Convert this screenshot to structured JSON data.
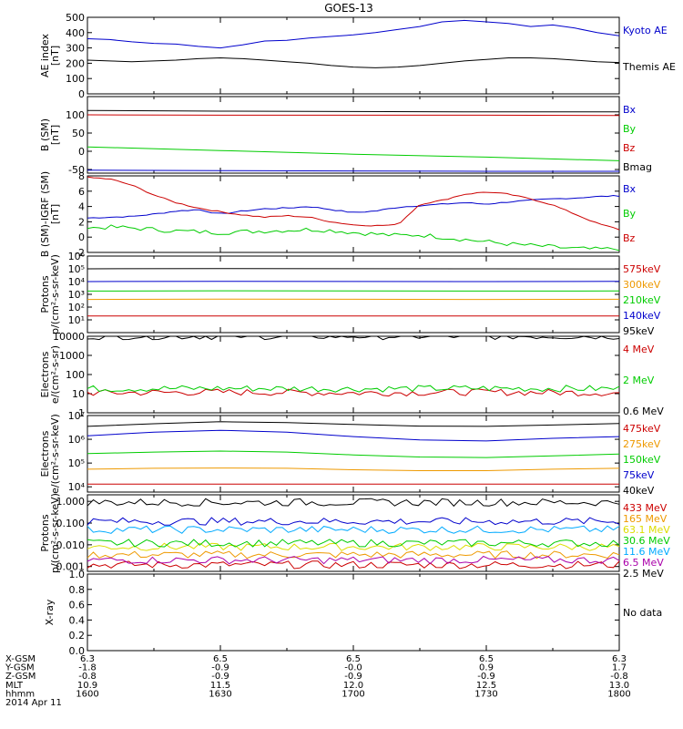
{
  "title": "GOES-13",
  "time_axis": {
    "x_ticks": [
      "1600",
      "1630",
      "1700",
      "1730",
      "1800"
    ],
    "ephemeris": [
      {
        "label": "X-GSM",
        "values": [
          "6.3",
          "6.5",
          "6.5",
          "6.5",
          "6.3"
        ]
      },
      {
        "label": "Y-GSM",
        "values": [
          "-1.8",
          "-0.9",
          "-0.0",
          "0.9",
          "1.7"
        ]
      },
      {
        "label": "Z-GSM",
        "values": [
          "-0.8",
          "-0.9",
          "-0.9",
          "-0.9",
          "-0.8"
        ]
      },
      {
        "label": "MLT",
        "values": [
          "10.9",
          "11.5",
          "12.0",
          "12.5",
          "13.0"
        ]
      },
      {
        "label": "hhmm",
        "values": [
          "1600",
          "1630",
          "1700",
          "1730",
          "1800"
        ]
      }
    ],
    "date": "2014 Apr 11"
  },
  "colors": {
    "black": "#000000",
    "blue": "#0000cc",
    "red": "#cc0000",
    "green": "#00cc00",
    "orange": "#ee9900",
    "yellow": "#dddd00",
    "cyan": "#00aaff",
    "purple": "#aa00aa"
  },
  "chart_data": [
    {
      "type": "line",
      "panel": "ae",
      "ylabel": [
        "AE index",
        "[nT]"
      ],
      "ylim": [
        0,
        500
      ],
      "yscale": "linear",
      "yticks": [
        "0",
        "100",
        "200",
        "300",
        "400",
        "500"
      ],
      "ytick_values": [
        0,
        100,
        200,
        300,
        400,
        500
      ],
      "x": [
        "1600",
        "1605",
        "1610",
        "1615",
        "1620",
        "1625",
        "1630",
        "1635",
        "1640",
        "1645",
        "1650",
        "1655",
        "1700",
        "1705",
        "1710",
        "1715",
        "1720",
        "1725",
        "1730",
        "1735",
        "1740",
        "1745",
        "1750",
        "1755",
        "1800"
      ],
      "series": [
        {
          "name": "Kyoto AE",
          "color": "blue",
          "values": [
            360,
            355,
            340,
            330,
            325,
            310,
            300,
            320,
            345,
            350,
            365,
            375,
            385,
            400,
            420,
            440,
            470,
            480,
            470,
            460,
            440,
            450,
            430,
            400,
            380
          ]
        },
        {
          "name": "Themis AE",
          "color": "black",
          "values": [
            220,
            215,
            210,
            215,
            220,
            230,
            235,
            230,
            220,
            210,
            200,
            185,
            175,
            170,
            175,
            185,
            200,
            215,
            225,
            235,
            235,
            230,
            220,
            210,
            205
          ]
        }
      ]
    },
    {
      "type": "line",
      "panel": "b_sm",
      "ylabel": [
        "B (SM)",
        "[nT]"
      ],
      "ylim": [
        -60,
        150
      ],
      "yscale": "linear",
      "yticks": [
        "-50",
        "0",
        "50",
        "100"
      ],
      "ytick_values": [
        -50,
        0,
        50,
        100
      ],
      "x": [
        "1600",
        "1630",
        "1700",
        "1730",
        "1800"
      ],
      "series": [
        {
          "name": "Bx",
          "color": "blue",
          "values": [
            -52,
            -53,
            -54,
            -55,
            -55
          ]
        },
        {
          "name": "By",
          "color": "green",
          "values": [
            12,
            2,
            -8,
            -16,
            -26
          ]
        },
        {
          "name": "Bz",
          "color": "red",
          "values": [
            100,
            99,
            99,
            99,
            98
          ]
        },
        {
          "name": "Bmag",
          "color": "black",
          "values": [
            112,
            110,
            109,
            108,
            108
          ]
        }
      ]
    },
    {
      "type": "line",
      "panel": "b_igrf",
      "ylabel": [
        "B (SM)-IGRF (SM)",
        "[nT]"
      ],
      "ylim": [
        -2,
        8
      ],
      "yscale": "linear",
      "yticks": [
        "-2",
        "0",
        "2",
        "4",
        "6",
        "8"
      ],
      "ytick_values": [
        -2,
        0,
        2,
        4,
        6,
        8
      ],
      "x": [
        "1600",
        "1605",
        "1610",
        "1615",
        "1620",
        "1625",
        "1630",
        "1635",
        "1640",
        "1645",
        "1650",
        "1655",
        "1700",
        "1705",
        "1710",
        "1715",
        "1720",
        "1725",
        "1730",
        "1735",
        "1740",
        "1745",
        "1750",
        "1755",
        "1800"
      ],
      "series": [
        {
          "name": "Bx",
          "color": "blue",
          "values": [
            2.5,
            2.6,
            2.7,
            3.0,
            3.4,
            3.6,
            3.0,
            3.4,
            3.7,
            3.8,
            4.0,
            3.6,
            3.2,
            3.4,
            3.9,
            4.1,
            4.3,
            4.5,
            4.3,
            4.6,
            4.8,
            5.0,
            5.1,
            5.3,
            5.4
          ]
        },
        {
          "name": "By",
          "color": "green",
          "values": [
            1.2,
            1.3,
            1.2,
            1.0,
            0.8,
            0.7,
            0.6,
            0.7,
            0.8,
            0.9,
            1.0,
            0.9,
            0.6,
            0.4,
            0.2,
            0.3,
            0.0,
            -0.3,
            -0.6,
            -0.9,
            -1.1,
            -1.3,
            -1.5,
            -1.6,
            -1.5
          ]
        },
        {
          "name": "Bz",
          "color": "red",
          "values": [
            7.8,
            7.6,
            6.8,
            5.5,
            4.5,
            3.8,
            3.3,
            2.9,
            2.6,
            2.8,
            2.6,
            2.0,
            1.6,
            1.5,
            1.6,
            4.3,
            4.8,
            5.6,
            5.9,
            5.6,
            5.0,
            4.2,
            3.0,
            1.8,
            1.0
          ]
        }
      ]
    },
    {
      "type": "line",
      "panel": "protons_low",
      "ylabel": [
        "Protons",
        "p/(cm²-s-sr-keV)"
      ],
      "ylim": [
        1,
        1000000
      ],
      "yscale": "log",
      "yticks": [
        "10¹",
        "10²",
        "10³",
        "10⁴",
        "10⁵",
        "10⁶"
      ],
      "ytick_values": [
        10,
        100,
        1000,
        10000,
        100000,
        1000000
      ],
      "x": [
        "1600",
        "1630",
        "1700",
        "1730",
        "1800"
      ],
      "series": [
        {
          "name": "575keV",
          "color": "red",
          "values": [
            20,
            20,
            20,
            20,
            20
          ]
        },
        {
          "name": "300keV",
          "color": "orange",
          "values": [
            400,
            420,
            410,
            400,
            410
          ]
        },
        {
          "name": "210keV",
          "color": "green",
          "values": [
            1800,
            1900,
            1850,
            1800,
            1850
          ]
        },
        {
          "name": "140keV",
          "color": "blue",
          "values": [
            10000,
            10500,
            10200,
            10000,
            10300
          ]
        },
        {
          "name": "95keV",
          "color": "black",
          "values": [
            100000,
            105000,
            102000,
            100000,
            98000
          ]
        }
      ]
    },
    {
      "type": "line",
      "panel": "electrons_mev",
      "ylabel": [
        "Electrons",
        "e/(cm²-s-sr)"
      ],
      "ylim": [
        1,
        10000
      ],
      "yscale": "log",
      "yticks": [
        "1",
        "10",
        "100",
        "1000",
        "10000"
      ],
      "ytick_values": [
        1,
        10,
        100,
        1000,
        10000
      ],
      "x": [
        "1600",
        "1630",
        "1700",
        "1730",
        "1800"
      ],
      "series": [
        {
          "name": "4 MeV",
          "color": "red",
          "values": [
            11,
            12,
            11,
            12,
            11
          ]
        },
        {
          "name": "2 MeV",
          "color": "green",
          "values": [
            18,
            19,
            18,
            19,
            18
          ]
        },
        {
          "name": "0.6 MeV",
          "color": "black",
          "values": [
            10000,
            10000,
            10000,
            10000,
            10000
          ]
        }
      ]
    },
    {
      "type": "line",
      "panel": "electrons_kev",
      "ylabel": [
        "Electrons",
        "e/(cm²-s-sr-keV)"
      ],
      "ylim": [
        6000,
        10000000
      ],
      "yscale": "log",
      "yticks": [
        "10⁴",
        "10⁵",
        "10⁶",
        "10⁷"
      ],
      "ytick_values": [
        10000,
        100000,
        1000000,
        10000000
      ],
      "x": [
        "1600",
        "1615",
        "1630",
        "1645",
        "1700",
        "1715",
        "1730",
        "1745",
        "1800"
      ],
      "series": [
        {
          "name": "475keV",
          "color": "red",
          "values": [
            13000,
            13000,
            13000,
            13000,
            13000,
            13000,
            13000,
            13000,
            13000
          ]
        },
        {
          "name": "275keV",
          "color": "orange",
          "values": [
            55000,
            60000,
            62000,
            60000,
            52000,
            48000,
            48000,
            55000,
            60000
          ]
        },
        {
          "name": "150keV",
          "color": "green",
          "values": [
            250000,
            290000,
            320000,
            290000,
            220000,
            180000,
            170000,
            200000,
            240000
          ]
        },
        {
          "name": "75keV",
          "color": "blue",
          "values": [
            1400000,
            2000000,
            2400000,
            2000000,
            1300000,
            950000,
            850000,
            1100000,
            1300000
          ]
        },
        {
          "name": "40keV",
          "color": "black",
          "values": [
            3500000,
            4500000,
            5500000,
            5000000,
            4200000,
            3600000,
            3500000,
            4000000,
            4600000
          ]
        }
      ]
    },
    {
      "type": "line",
      "panel": "protons_mev",
      "ylabel": [
        "Protons",
        "p/(cm²-s-sr-keV)"
      ],
      "ylim": [
        0.0006,
        2
      ],
      "yscale": "log",
      "yticks": [
        "0.001",
        "0.010",
        "0.100",
        "1.000"
      ],
      "ytick_values": [
        0.001,
        0.01,
        0.1,
        1
      ],
      "x": [
        "1600",
        "1630",
        "1700",
        "1730",
        "1800"
      ],
      "series": [
        {
          "name": "433 MeV",
          "color": "red",
          "values": [
            0.0012,
            0.0012,
            0.0012,
            0.0012,
            0.0012
          ]
        },
        {
          "name": "165 MeV",
          "color": "orange",
          "values": [
            0.0035,
            0.0035,
            0.0035,
            0.0035,
            0.0035
          ]
        },
        {
          "name": "63.1 MeV",
          "color": "yellow",
          "values": [
            0.008,
            0.008,
            0.008,
            0.008,
            0.008
          ]
        },
        {
          "name": "30.6 MeV",
          "color": "green",
          "values": [
            0.012,
            0.012,
            0.012,
            0.012,
            0.012
          ]
        },
        {
          "name": "11.6 MeV",
          "color": "cyan",
          "values": [
            0.05,
            0.05,
            0.05,
            0.05,
            0.05
          ]
        },
        {
          "name": "6.5 MeV",
          "color": "purple",
          "values": [
            0.002,
            0.002,
            0.002,
            0.002,
            0.002
          ]
        },
        {
          "name": "2.5 MeV",
          "color": "black",
          "values": [
            0.9,
            0.9,
            0.9,
            0.9,
            0.9
          ]
        },
        {
          "name": "",
          "color": "blue",
          "values": [
            0.12,
            0.12,
            0.12,
            0.12,
            0.12
          ]
        }
      ]
    },
    {
      "type": "line",
      "panel": "xray",
      "ylabel": [
        "X-ray"
      ],
      "ylim": [
        0,
        1
      ],
      "yscale": "linear",
      "yticks": [
        "0.0",
        "0.2",
        "0.4",
        "0.6",
        "0.8",
        "1.0"
      ],
      "ytick_values": [
        0,
        0.2,
        0.4,
        0.6,
        0.8,
        1.0
      ],
      "x": [],
      "series": [],
      "note": "No data"
    }
  ]
}
